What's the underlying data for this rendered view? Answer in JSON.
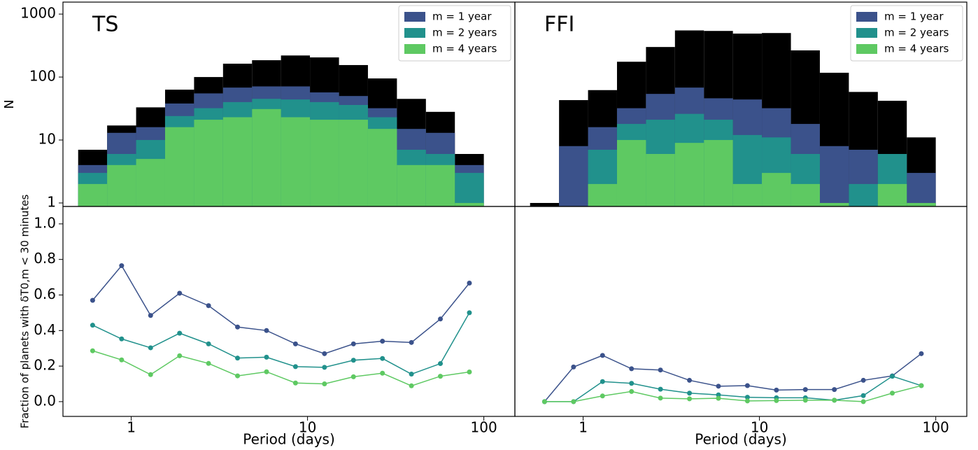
{
  "chart_data": [
    {
      "type": "histogram",
      "title": "TS",
      "ylabel": "N",
      "log_x": true,
      "log_y": true,
      "legend": "upper right",
      "xlim": [
        0.41,
        150
      ],
      "ylim": [
        0.88,
        1550
      ],
      "yticks": [
        1,
        10,
        100,
        1000
      ],
      "bins": [
        0.5,
        0.73,
        1.066,
        1.556,
        2.272,
        3.317,
        4.844,
        7.07,
        10.32,
        15.08,
        22.01,
        32.14,
        46.93,
        68.5,
        100
      ],
      "series": [
        {
          "color": "#000000",
          "values": [
            7,
            17,
            33,
            63,
            100,
            163,
            185,
            220,
            205,
            155,
            95,
            45,
            28,
            6
          ]
        },
        {
          "name": "m = 1 year",
          "color": "#3b528b",
          "values": [
            4,
            13,
            16,
            38,
            55,
            68,
            71,
            71,
            57,
            50,
            32,
            15,
            13,
            4
          ]
        },
        {
          "name": "m = 2 years",
          "color": "#21918c",
          "values": [
            3,
            6,
            10,
            24,
            32,
            40,
            45,
            44,
            40,
            36,
            23,
            7,
            6,
            3
          ]
        },
        {
          "name": "m = 4 years",
          "color": "#5ec962",
          "values": [
            2,
            4,
            5,
            16,
            21,
            23,
            31,
            23,
            21,
            21,
            15,
            4,
            4,
            1
          ]
        }
      ]
    },
    {
      "type": "histogram",
      "title": "FFI",
      "log_x": true,
      "log_y": true,
      "legend": "upper right",
      "xlim": [
        0.41,
        150
      ],
      "ylim": [
        0.88,
        1550
      ],
      "bins": [
        0.5,
        0.73,
        1.066,
        1.556,
        2.272,
        3.317,
        4.844,
        7.07,
        10.32,
        15.08,
        22.01,
        32.14,
        46.93,
        68.5,
        100
      ],
      "series": [
        {
          "color": "#000000",
          "values": [
            1,
            43,
            62,
            175,
            300,
            550,
            540,
            490,
            500,
            265,
            117,
            58,
            42,
            11
          ]
        },
        {
          "name": "m = 1 year",
          "color": "#3b528b",
          "values": [
            0,
            8,
            16,
            32,
            54,
            68,
            46,
            44,
            32,
            18,
            8,
            7,
            6,
            3
          ]
        },
        {
          "name": "m = 2 years",
          "color": "#21918c",
          "values": [
            0,
            0,
            7,
            18,
            21,
            26,
            21,
            12,
            11,
            6,
            1,
            2,
            6,
            1
          ]
        },
        {
          "name": "m = 4 years",
          "color": "#5ec962",
          "values": [
            0,
            0,
            2,
            10,
            6,
            9,
            10,
            2,
            3,
            2,
            1,
            0,
            2,
            1
          ]
        }
      ]
    },
    {
      "type": "line",
      "log_x": true,
      "xlabel": "Period (days)",
      "ylabel": "Fraction of planets with δT0,m < 30 minutes",
      "xlim": [
        0.41,
        150
      ],
      "xticks": [
        1,
        10,
        100
      ],
      "ylim": [
        -0.083,
        1.098
      ],
      "yticks": [
        {
          "value": 0,
          "label": "0.0"
        },
        0.2,
        0.4,
        0.6,
        0.8,
        {
          "value": 1,
          "label": "1.0"
        }
      ],
      "x": [
        0.604,
        0.882,
        1.288,
        1.881,
        2.745,
        4.009,
        5.853,
        8.545,
        12.48,
        18.22,
        26.6,
        38.84,
        56.7,
        82.8
      ],
      "series": [
        {
          "color": "#3b528b",
          "values": [
            0.57,
            0.765,
            0.485,
            0.61,
            0.54,
            0.42,
            0.4,
            0.325,
            0.27,
            0.325,
            0.34,
            0.333,
            0.465,
            0.667
          ]
        },
        {
          "color": "#21918c",
          "values": [
            0.43,
            0.353,
            0.303,
            0.385,
            0.325,
            0.245,
            0.25,
            0.197,
            0.193,
            0.233,
            0.243,
            0.155,
            0.214,
            0.5
          ]
        },
        {
          "color": "#5ec962",
          "values": [
            0.286,
            0.235,
            0.152,
            0.258,
            0.215,
            0.145,
            0.168,
            0.105,
            0.1,
            0.14,
            0.16,
            0.089,
            0.143,
            0.167
          ]
        }
      ]
    },
    {
      "type": "line",
      "log_x": true,
      "xlabel": "Period (days)",
      "xlim": [
        0.41,
        150
      ],
      "xticks": [
        1,
        10,
        100
      ],
      "ylim": [
        -0.083,
        1.098
      ],
      "x": [
        0.604,
        0.882,
        1.288,
        1.881,
        2.745,
        4.009,
        5.853,
        8.545,
        12.48,
        18.22,
        26.6,
        38.84,
        56.7,
        82.8
      ],
      "series": [
        {
          "color": "#3b528b",
          "values": [
            0,
            0.195,
            0.26,
            0.185,
            0.178,
            0.12,
            0.087,
            0.09,
            0.065,
            0.068,
            0.068,
            0.12,
            0.145,
            0.27
          ]
        },
        {
          "color": "#21918c",
          "values": [
            0,
            0,
            0.113,
            0.103,
            0.07,
            0.048,
            0.038,
            0.025,
            0.022,
            0.022,
            0.008,
            0.034,
            0.143,
            0.09
          ]
        },
        {
          "color": "#5ec962",
          "values": [
            0,
            0,
            0.032,
            0.057,
            0.02,
            0.016,
            0.019,
            0.004,
            0.006,
            0.008,
            0.008,
            0,
            0.048,
            0.09
          ]
        }
      ]
    }
  ]
}
